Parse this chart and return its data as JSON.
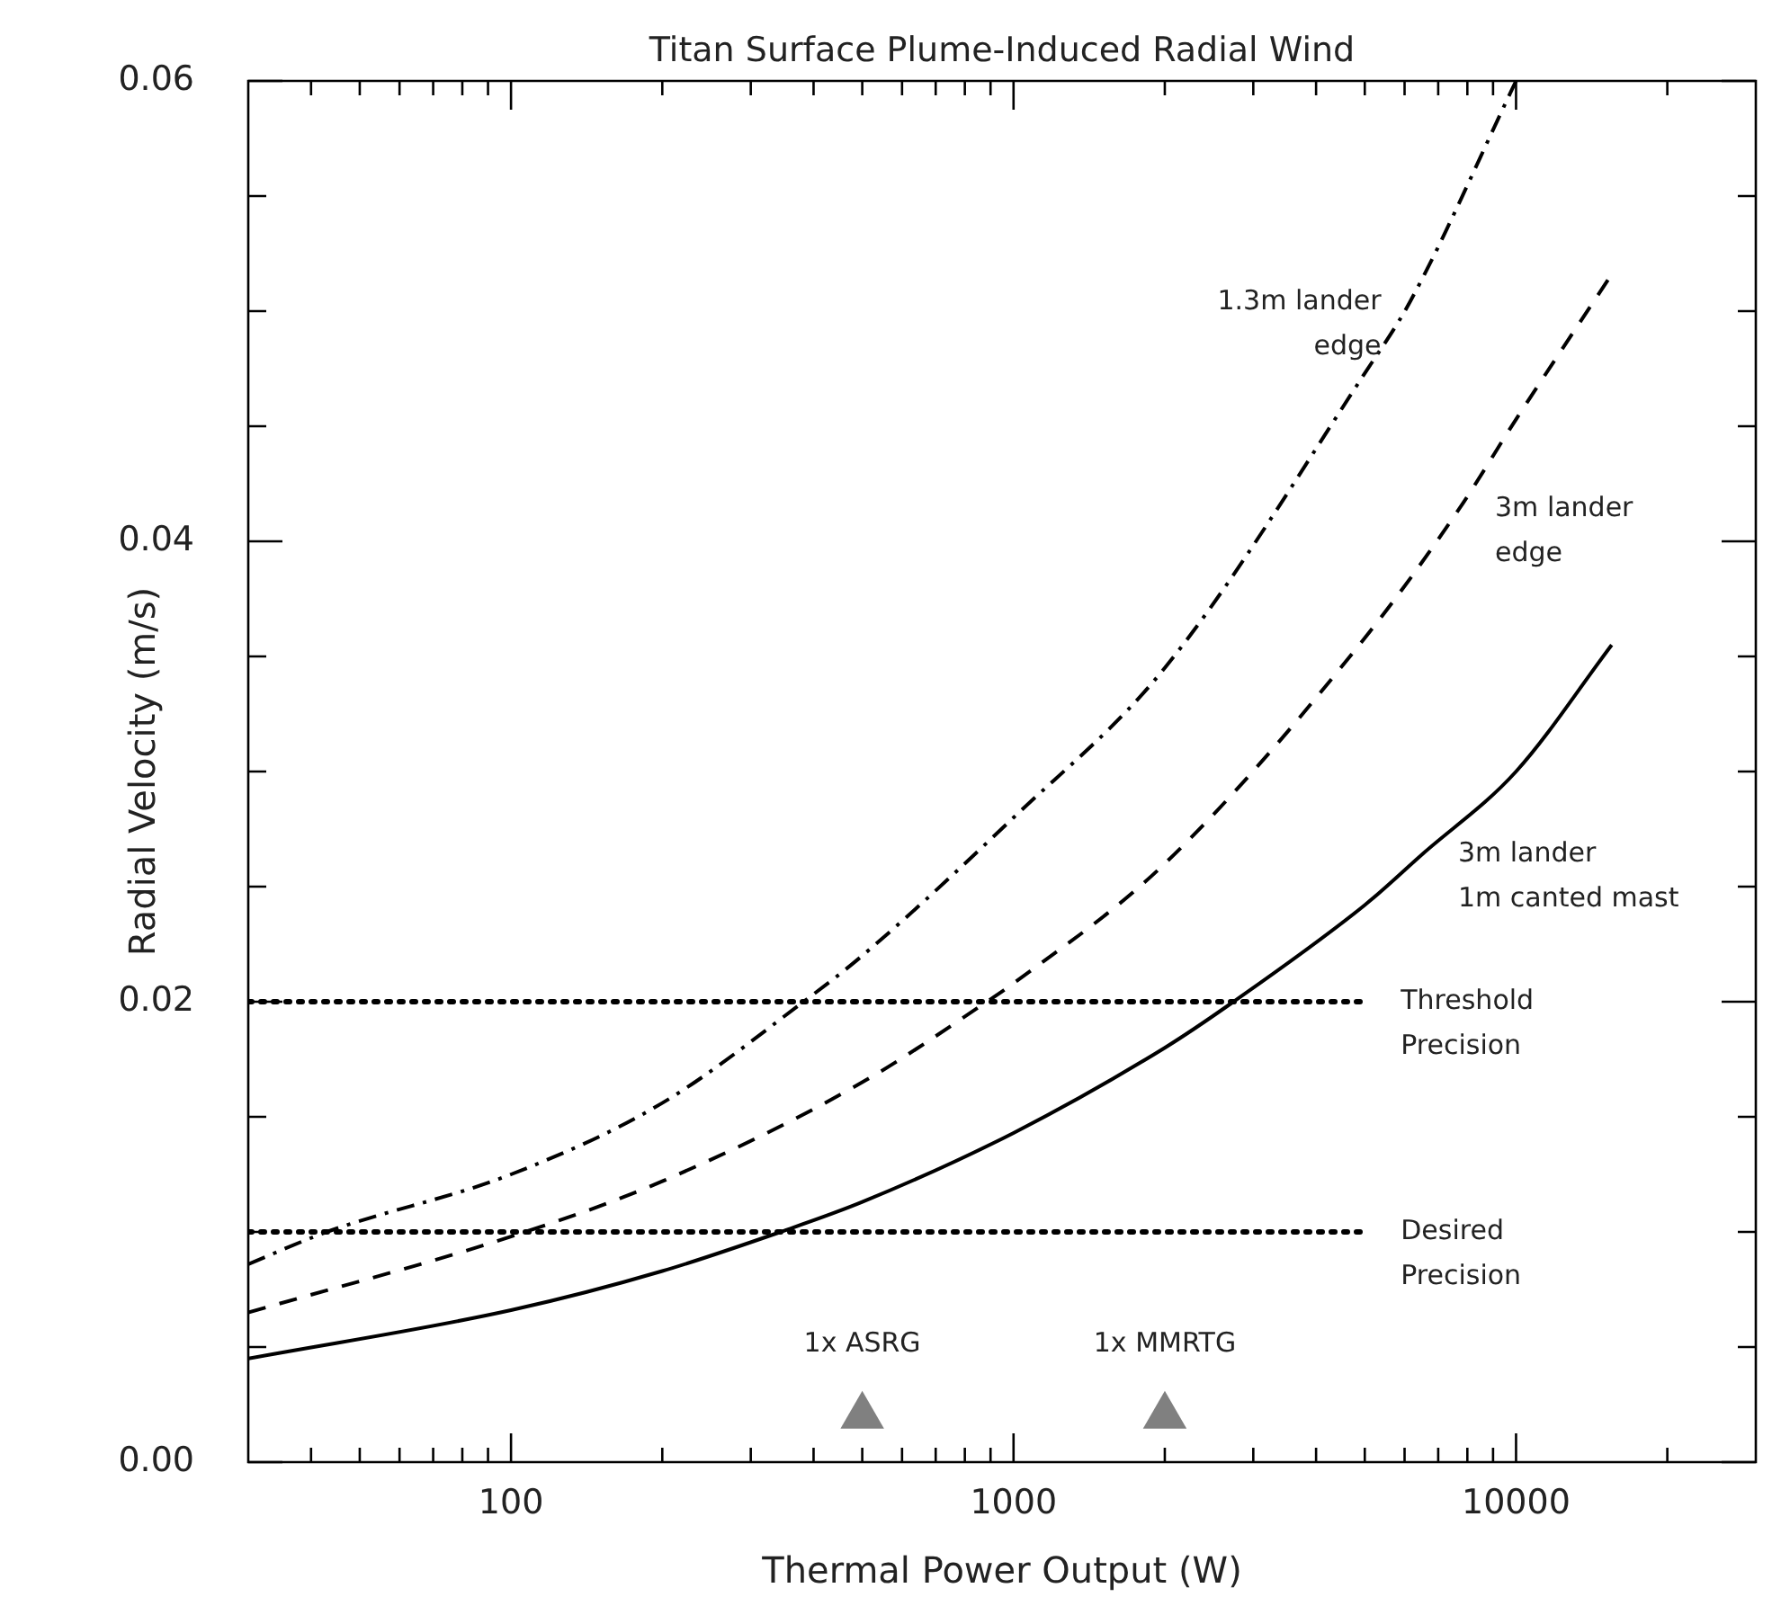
{
  "chart_data": {
    "type": "line",
    "title": "Titan Surface Plume-Induced Radial Wind",
    "xlabel": "Thermal Power Output (W)",
    "ylabel": "Radial Velocity (m/s)",
    "log": "x",
    "xlim": [
      30,
      30000
    ],
    "xticks": [
      {
        "value": 40,
        "label": null
      },
      {
        "value": 50,
        "label": null
      },
      {
        "value": 60,
        "label": null
      },
      {
        "value": 70,
        "label": null
      },
      {
        "value": 80,
        "label": null
      },
      {
        "value": 90,
        "label": null
      },
      100,
      {
        "value": 200,
        "label": null
      },
      {
        "value": 300,
        "label": null
      },
      {
        "value": 400,
        "label": null
      },
      {
        "value": 500,
        "label": null
      },
      {
        "value": 600,
        "label": null
      },
      {
        "value": 700,
        "label": null
      },
      {
        "value": 800,
        "label": null
      },
      {
        "value": 900,
        "label": null
      },
      1000,
      {
        "value": 2000,
        "label": null
      },
      {
        "value": 3000,
        "label": null
      },
      {
        "value": 4000,
        "label": null
      },
      {
        "value": 5000,
        "label": null
      },
      {
        "value": 6000,
        "label": null
      },
      {
        "value": 7000,
        "label": null
      },
      {
        "value": 8000,
        "label": null
      },
      {
        "value": 9000,
        "label": null
      },
      10000,
      {
        "value": 20000,
        "label": null
      }
    ],
    "ylim": [
      0,
      0.06
    ],
    "yticks": [
      {
        "value": 0,
        "label": "0.00"
      },
      {
        "value": 0.005,
        "label": null
      },
      {
        "value": 0.01,
        "label": null
      },
      {
        "value": 0.015,
        "label": null
      },
      0.02,
      {
        "value": 0.025,
        "label": null
      },
      {
        "value": 0.03,
        "label": null
      },
      {
        "value": 0.035,
        "label": null
      },
      0.04,
      {
        "value": 0.045,
        "label": null
      },
      {
        "value": 0.05,
        "label": null
      },
      {
        "value": 0.055,
        "label": null
      },
      0.06
    ],
    "series": [
      {
        "color": "#000000",
        "line_style": "solid",
        "marker": "none",
        "x": [
          30,
          100,
          200,
          344,
          500,
          1000,
          2000,
          2740,
          5000,
          6500,
          10000,
          15500
        ],
        "values": [
          0.0045,
          0.0066,
          0.0083,
          0.01,
          0.0113,
          0.0143,
          0.018,
          0.02,
          0.0242,
          0.0264,
          0.03,
          0.0355
        ]
      },
      {
        "color": "#000000",
        "line_style": "dashed",
        "marker": "none",
        "x": [
          30,
          100,
          200,
          500,
          885,
          1000,
          2000,
          5000,
          7700,
          10000,
          15500
        ],
        "values": [
          0.0065,
          0.0098,
          0.0122,
          0.0165,
          0.02,
          0.0208,
          0.026,
          0.0358,
          0.0414,
          0.0453,
          0.0516
        ]
      },
      {
        "color": "#000000",
        "line_style": "dashdot",
        "marker": "none",
        "x": [
          30,
          43,
          100,
          200,
          382,
          500,
          1000,
          2000,
          5000,
          6150,
          10000
        ],
        "values": [
          0.0086,
          0.01,
          0.0125,
          0.0156,
          0.02,
          0.022,
          0.028,
          0.0345,
          0.0473,
          0.0504,
          0.06
        ]
      },
      {
        "color": "#000000",
        "line_style": "dotted",
        "marker": "none",
        "x": [
          30,
          5000
        ],
        "values": [
          0.02,
          0.02
        ]
      },
      {
        "color": "#000000",
        "line_style": "dotted",
        "marker": "none",
        "x": [
          30,
          5000
        ],
        "values": [
          0.01,
          0.01
        ]
      },
      {
        "type": "scatter",
        "color": "#808080",
        "marker": "triangle",
        "x": [
          500,
          2000
        ],
        "values": [
          0.002,
          0.002
        ]
      }
    ],
    "annotations": [
      {
        "text": "1.3m lander\nedge",
        "x": 6150,
        "y": 0.0504
      },
      {
        "text": "3m lander\nedge",
        "x": 7700,
        "y": 0.0414
      },
      {
        "text": "3m lander\n1m canted mast",
        "x": 6500,
        "y": 0.0264
      },
      {
        "text": "Threshold\nPrecision",
        "x": 5000,
        "y": 0.02
      },
      {
        "text": "Desired\nPrecision",
        "x": 5000,
        "y": 0.01
      },
      {
        "text": "1x ASRG",
        "x": 500,
        "y": 0.002
      },
      {
        "text": "1x MMRTG",
        "x": 2000,
        "y": 0.002
      }
    ]
  }
}
